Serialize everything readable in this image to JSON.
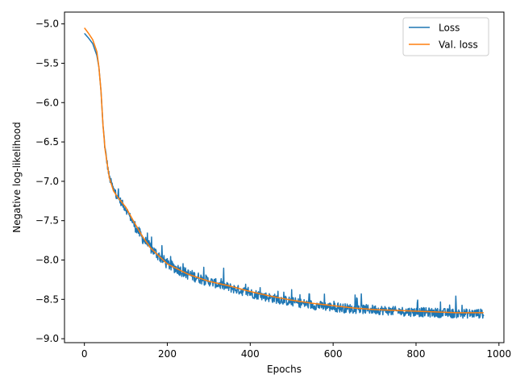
{
  "chart_data": {
    "type": "line",
    "title": "",
    "xlabel": "Epochs",
    "ylabel": "Negative log-likelihood",
    "xlim": [
      -48,
      1012
    ],
    "ylim": [
      -9.05,
      -4.85
    ],
    "x_ticks": [
      0,
      200,
      400,
      600,
      800,
      1000
    ],
    "x_tick_labels": [
      "0",
      "200",
      "400",
      "600",
      "800",
      "1000"
    ],
    "y_ticks": [
      -9.0,
      -8.5,
      -8.0,
      -7.5,
      -7.0,
      -6.5,
      -6.0,
      -5.5,
      -5.0
    ],
    "y_tick_labels": [
      "−9.0",
      "−8.5",
      "−8.0",
      "−7.5",
      "−7.0",
      "−6.5",
      "−6.0",
      "−5.5",
      "−5.0"
    ],
    "grid": false,
    "legend_position": "upper right",
    "series": [
      {
        "name": "Loss",
        "color": "#1f77b4",
        "noisy": true,
        "x_range": [
          0,
          963
        ],
        "x_anchor": [
          0,
          10,
          20,
          30,
          35,
          40,
          45,
          50,
          60,
          70,
          80,
          100,
          120,
          140,
          160,
          180,
          200,
          250,
          300,
          350,
          400,
          450,
          500,
          550,
          600,
          650,
          700,
          750,
          800,
          850,
          900,
          963
        ],
        "y_anchor": [
          -5.12,
          -5.18,
          -5.25,
          -5.4,
          -5.55,
          -5.85,
          -6.3,
          -6.6,
          -6.95,
          -7.1,
          -7.2,
          -7.35,
          -7.55,
          -7.72,
          -7.85,
          -7.95,
          -8.05,
          -8.18,
          -8.27,
          -8.35,
          -8.42,
          -8.48,
          -8.53,
          -8.57,
          -8.6,
          -8.62,
          -8.63,
          -8.65,
          -8.66,
          -8.67,
          -8.68,
          -8.68
        ]
      },
      {
        "name": "Val. loss",
        "color": "#ff7f0e",
        "noisy": false,
        "x_range": [
          0,
          963
        ],
        "x_anchor": [
          0,
          10,
          20,
          30,
          35,
          40,
          45,
          50,
          60,
          70,
          80,
          100,
          120,
          140,
          160,
          180,
          200,
          250,
          300,
          350,
          400,
          450,
          500,
          550,
          600,
          650,
          700,
          750,
          800,
          850,
          900,
          963
        ],
        "y_anchor": [
          -5.05,
          -5.12,
          -5.2,
          -5.35,
          -5.55,
          -5.85,
          -6.3,
          -6.6,
          -6.95,
          -7.12,
          -7.2,
          -7.33,
          -7.52,
          -7.7,
          -7.85,
          -7.95,
          -8.05,
          -8.18,
          -8.27,
          -8.33,
          -8.4,
          -8.46,
          -8.51,
          -8.55,
          -8.58,
          -8.61,
          -8.63,
          -8.64,
          -8.65,
          -8.66,
          -8.67,
          -8.67
        ]
      }
    ]
  }
}
